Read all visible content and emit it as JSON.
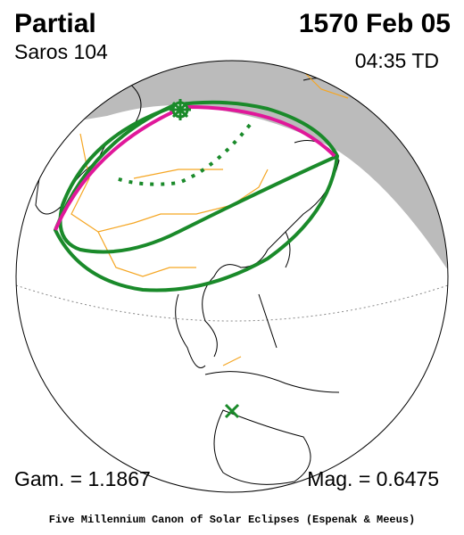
{
  "header": {
    "type": "Partial",
    "date": "1570 Feb 05",
    "saros": "Saros 104",
    "time": "04:35 TD"
  },
  "parameters": {
    "gamma": "Gam. = 1.1867",
    "magnitude": "Mag. = 0.6475"
  },
  "footer": "Five Millennium Canon of Solar Eclipses (Espenak & Meeus)"
}
